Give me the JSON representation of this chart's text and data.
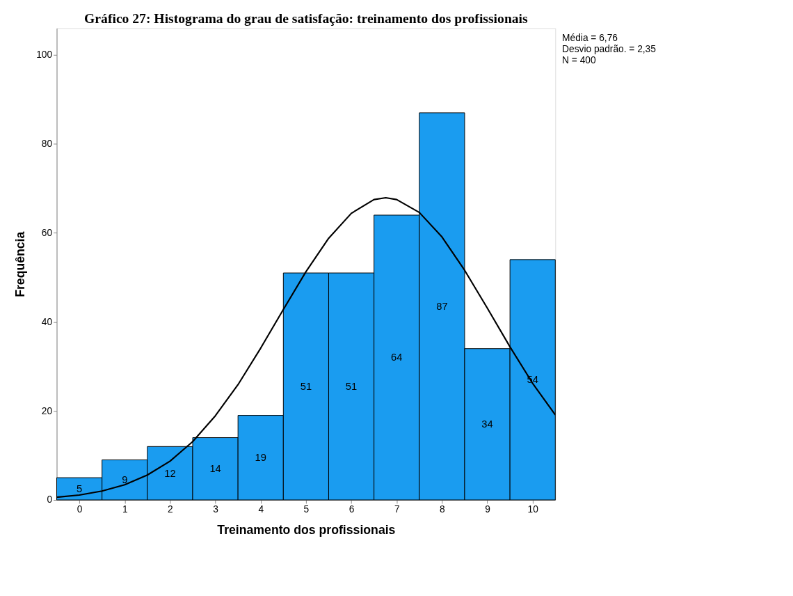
{
  "chart_data": {
    "type": "histogram",
    "title": "Gráfico 27: Histograma do grau de satisfação: treinamento dos profissionais",
    "xlabel": "Treinamento dos profissionais",
    "ylabel": "Frequência",
    "bins": [
      -0.5,
      0.5,
      1.5,
      2.5,
      3.5,
      4.5,
      5.5,
      6.5,
      7.5,
      8.5,
      9.5,
      10.5
    ],
    "series": [
      {
        "color": "#1a9cf0",
        "values": [
          5,
          9,
          12,
          14,
          19,
          51,
          51,
          64,
          87,
          34,
          54
        ],
        "value_labels": [
          "5",
          "9",
          "12",
          "14",
          "19",
          "51",
          "51",
          "64",
          "87",
          "34",
          "54"
        ]
      },
      {
        "type": "line",
        "color": "#000000",
        "x": [
          -0.5,
          0,
          0.5,
          1,
          1.5,
          2,
          2.5,
          3,
          3.5,
          4,
          4.5,
          5,
          5.5,
          6,
          6.5,
          6.76,
          7,
          7.5,
          8,
          8.5,
          9,
          9.5,
          10,
          10.5
        ],
        "values": [
          0.6,
          1.1,
          2.0,
          3.4,
          5.6,
          8.7,
          13.1,
          18.9,
          25.9,
          34.1,
          42.8,
          51.3,
          58.8,
          64.4,
          67.5,
          67.9,
          67.5,
          64.6,
          59.1,
          51.6,
          43.1,
          34.4,
          26.2,
          19.1
        ]
      }
    ],
    "xlim": [
      -0.5,
      10.5
    ],
    "xticks": [
      0,
      1,
      2,
      3,
      4,
      5,
      6,
      7,
      8,
      9,
      10
    ],
    "ylim": [
      0,
      106
    ],
    "yticks": [
      0,
      20,
      40,
      60,
      80,
      100
    ],
    "grid": false,
    "annotations": [
      "Média = 6,76",
      " Desvio padrão. = 2,35",
      "N = 400"
    ]
  }
}
